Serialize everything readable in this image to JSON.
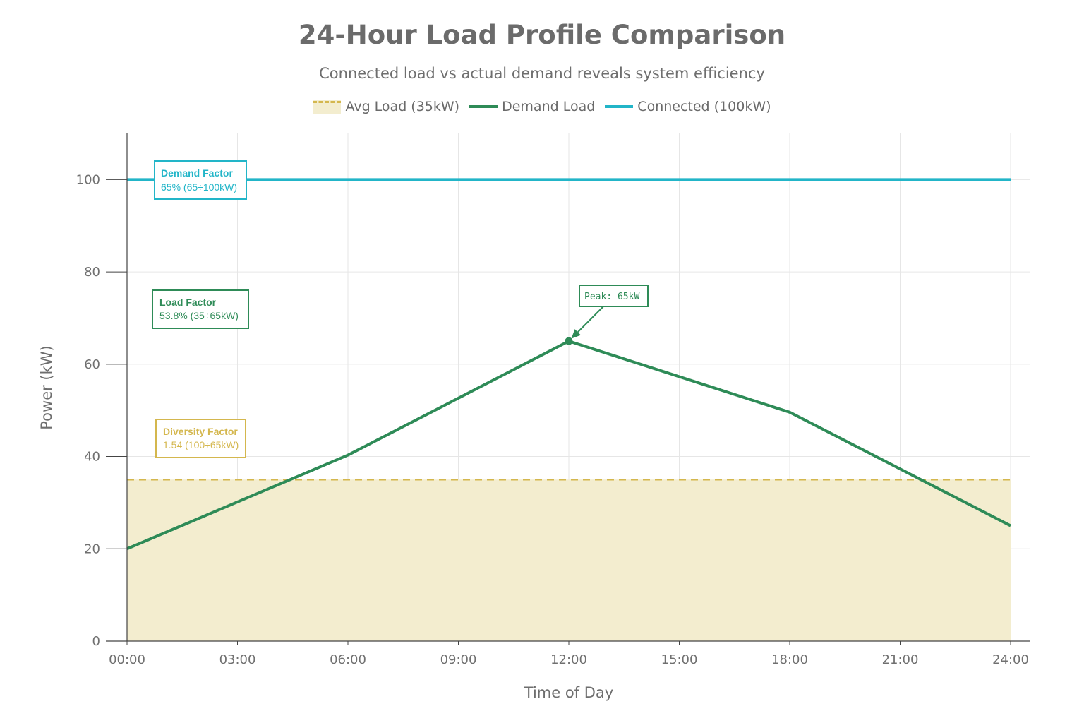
{
  "colors": {
    "connected": "#22b5c8",
    "demand": "#2e8b57",
    "average": "#d4b74e",
    "average_fill": "#f3edcf",
    "grid": "#e6e6e6",
    "axis": "#444444"
  },
  "chart_data": {
    "type": "line",
    "title": "24-Hour Load Profile Comparison",
    "subtitle": "Connected load vs actual demand reveals system efficiency",
    "xlabel": "Time of Day",
    "ylabel": "Power (kW)",
    "x_ticks": [
      "00:00",
      "03:00",
      "06:00",
      "09:00",
      "12:00",
      "15:00",
      "18:00",
      "21:00",
      "24:00"
    ],
    "y_ticks": [
      0,
      20,
      40,
      60,
      80,
      100
    ],
    "xlim": [
      0,
      24
    ],
    "ylim": [
      0,
      110
    ],
    "grid": true,
    "legend_position": "top-center",
    "legend": [
      "Avg Load (35kW)",
      "Demand Load",
      "Connected (100kW)"
    ],
    "series": [
      {
        "name": "Avg Load (35kW)",
        "style": "dashed-area",
        "x": [
          0,
          24
        ],
        "y": [
          35,
          35
        ]
      },
      {
        "name": "Demand Load",
        "style": "line",
        "x": [
          0,
          6,
          12,
          18,
          24
        ],
        "y": [
          20,
          40.3,
          65,
          49.6,
          25
        ]
      },
      {
        "name": "Connected (100kW)",
        "style": "line",
        "x": [
          0,
          24
        ],
        "y": [
          100,
          100
        ]
      }
    ],
    "annotations": {
      "peak": {
        "label": "Peak: 65kW",
        "x": 12,
        "y": 65
      },
      "demand_factor": {
        "title": "Demand Factor",
        "body": "65% (65÷100kW)"
      },
      "load_factor": {
        "title": "Load Factor",
        "body": "53.8% (35÷65kW)"
      },
      "diversity_factor": {
        "title": "Diversity Factor",
        "body": "1.54 (100÷65kW)"
      }
    }
  }
}
